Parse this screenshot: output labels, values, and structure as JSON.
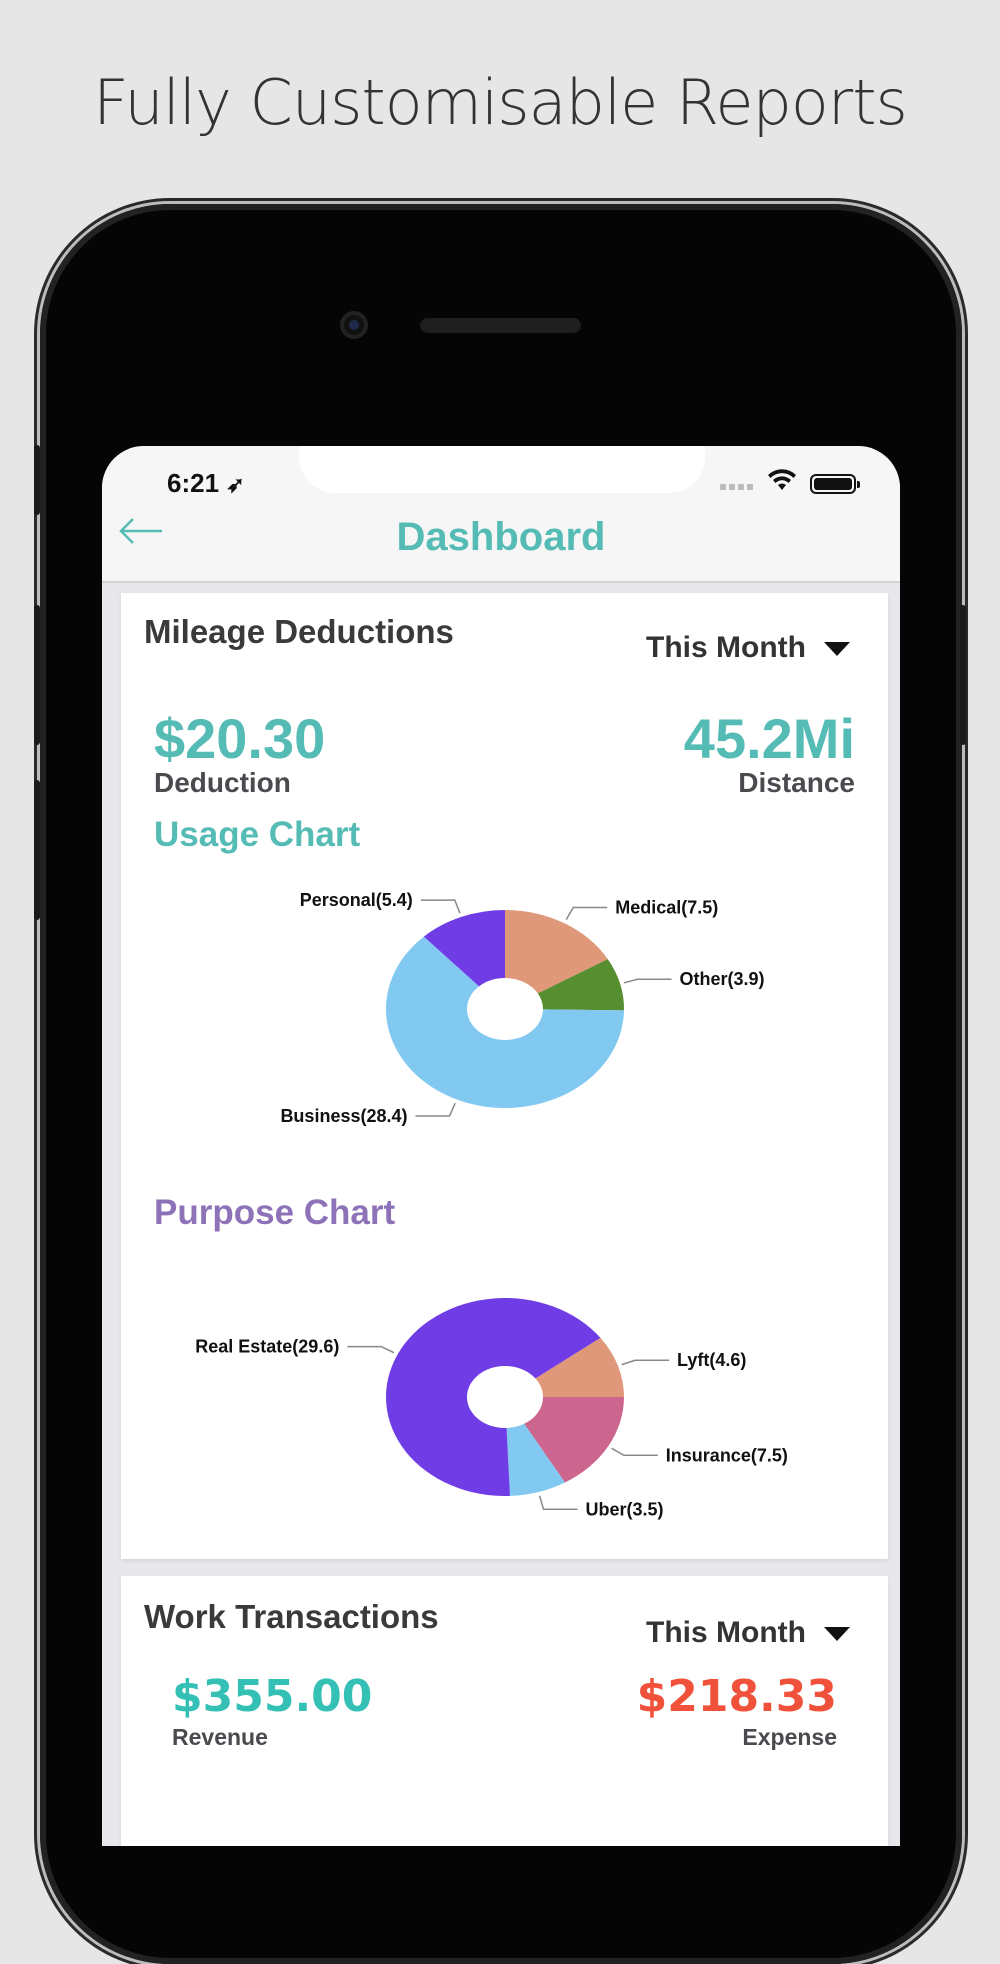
{
  "headline": "Fully Customisable Reports",
  "status": {
    "time": "6:21",
    "location_icon": "location-arrow-icon",
    "wifi_icon": "wifi-icon",
    "battery_icon": "battery-icon"
  },
  "nav": {
    "back_icon": "arrow-left-icon",
    "title": "Dashboard"
  },
  "mileage": {
    "title": "Mileage Deductions",
    "period": "This Month",
    "deduction_value": "$20.30",
    "deduction_label": "Deduction",
    "distance_value": "45.2Mi",
    "distance_label": "Distance",
    "usage_title": "Usage Chart",
    "purpose_title": "Purpose Chart"
  },
  "work": {
    "title": "Work Transactions",
    "period": "This Month",
    "revenue_value": "$355.00",
    "revenue_label": "Revenue",
    "expense_value": "$218.33",
    "expense_label": "Expense"
  },
  "colors": {
    "teal": "#55bbb5",
    "purple": "#8e72b8",
    "revenue": "#35c0b5",
    "expense": "#f0513a"
  },
  "chart_data": [
    {
      "type": "pie",
      "donut": true,
      "title": "Usage Chart",
      "slices": [
        {
          "label": "Medical(7.5)",
          "value": 7.5,
          "color": "#e0987b"
        },
        {
          "label": "Other(3.9)",
          "value": 3.9,
          "color": "#568e30"
        },
        {
          "label": "Business(28.4)",
          "value": 28.4,
          "color": "#82c9f2"
        },
        {
          "label": "Personal(5.4)",
          "value": 5.4,
          "color": "#703ce6"
        }
      ]
    },
    {
      "type": "pie",
      "donut": true,
      "title": "Purpose Chart",
      "slices": [
        {
          "label": "Insurance(7.5)",
          "value": 7.5,
          "color": "#cd668f"
        },
        {
          "label": "Uber(3.5)",
          "value": 3.5,
          "color": "#82c9f2"
        },
        {
          "label": "Real Estate(29.6)",
          "value": 29.6,
          "color": "#703ce6"
        },
        {
          "label": "Lyft(4.6)",
          "value": 4.6,
          "color": "#e0987b"
        }
      ]
    }
  ]
}
